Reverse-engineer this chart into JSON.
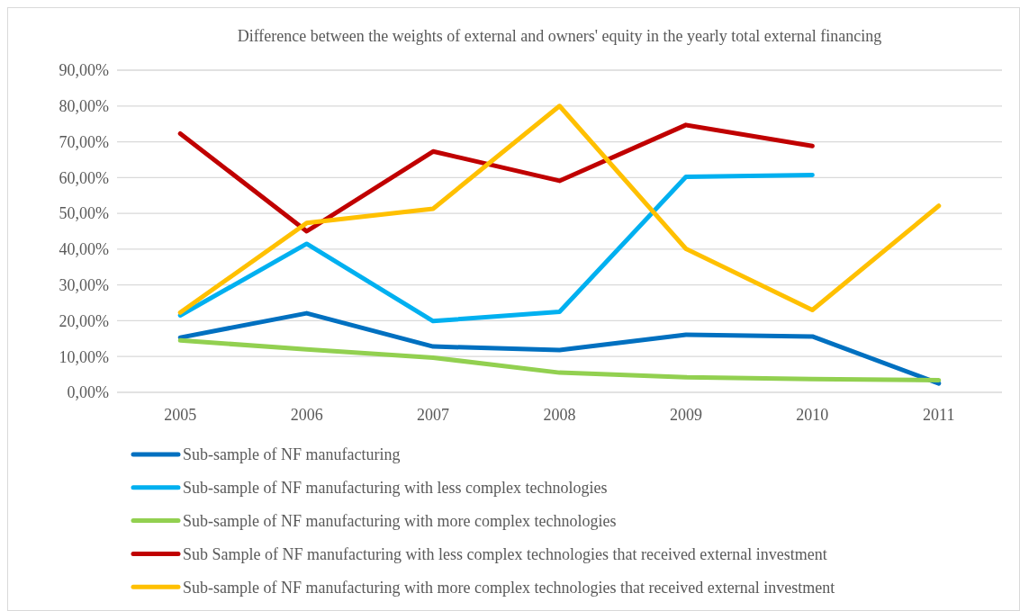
{
  "chart_data": {
    "type": "line",
    "title": "Difference between the weights of external and owners' equity in the yearly total external financing",
    "categories": [
      "2005",
      "2006",
      "2007",
      "2008",
      "2009",
      "2010",
      "2011"
    ],
    "series": [
      {
        "name": "Sub-sample of NF manufacturing",
        "color": "#0070c0",
        "values": [
          15.3,
          22.1,
          12.8,
          11.8,
          16.1,
          15.6,
          2.5
        ]
      },
      {
        "name": "Sub-sample of NF manufacturing with less complex technologies",
        "color": "#00b0f0",
        "values": [
          21.5,
          41.5,
          19.9,
          22.5,
          60.2,
          60.7,
          null
        ]
      },
      {
        "name": "Sub-sample of NF manufacturing with more complex technologies",
        "color": "#92d050",
        "values": [
          14.5,
          12.0,
          9.7,
          5.5,
          4.2,
          3.7,
          3.4
        ]
      },
      {
        "name": "Sub Sample of NF manufacturing with less complex technologies that received external investment",
        "color": "#c00000",
        "values": [
          72.3,
          45.0,
          67.3,
          59.1,
          74.7,
          68.8,
          null
        ]
      },
      {
        "name": "Sub-sample of NF manufacturing with more complex technologies that received external investment",
        "color": "#ffc000",
        "values": [
          22.3,
          47.3,
          51.3,
          80.0,
          40.1,
          23.0,
          52.1
        ]
      }
    ],
    "ylim": [
      0,
      90
    ],
    "yticks": [
      {
        "value": 0,
        "label": "0,00%"
      },
      {
        "value": 10,
        "label": "10,00%"
      },
      {
        "value": 20,
        "label": "20,00%"
      },
      {
        "value": 30,
        "label": "30,00%"
      },
      {
        "value": 40,
        "label": "40,00%"
      },
      {
        "value": 50,
        "label": "50,00%"
      },
      {
        "value": 60,
        "label": "60,00%"
      },
      {
        "value": 70,
        "label": "70,00%"
      },
      {
        "value": 80,
        "label": "80,00%"
      },
      {
        "value": 90,
        "label": "90,00%"
      }
    ],
    "grid": "y",
    "legend": "bottom",
    "marker": "none",
    "line_style": "solid"
  }
}
